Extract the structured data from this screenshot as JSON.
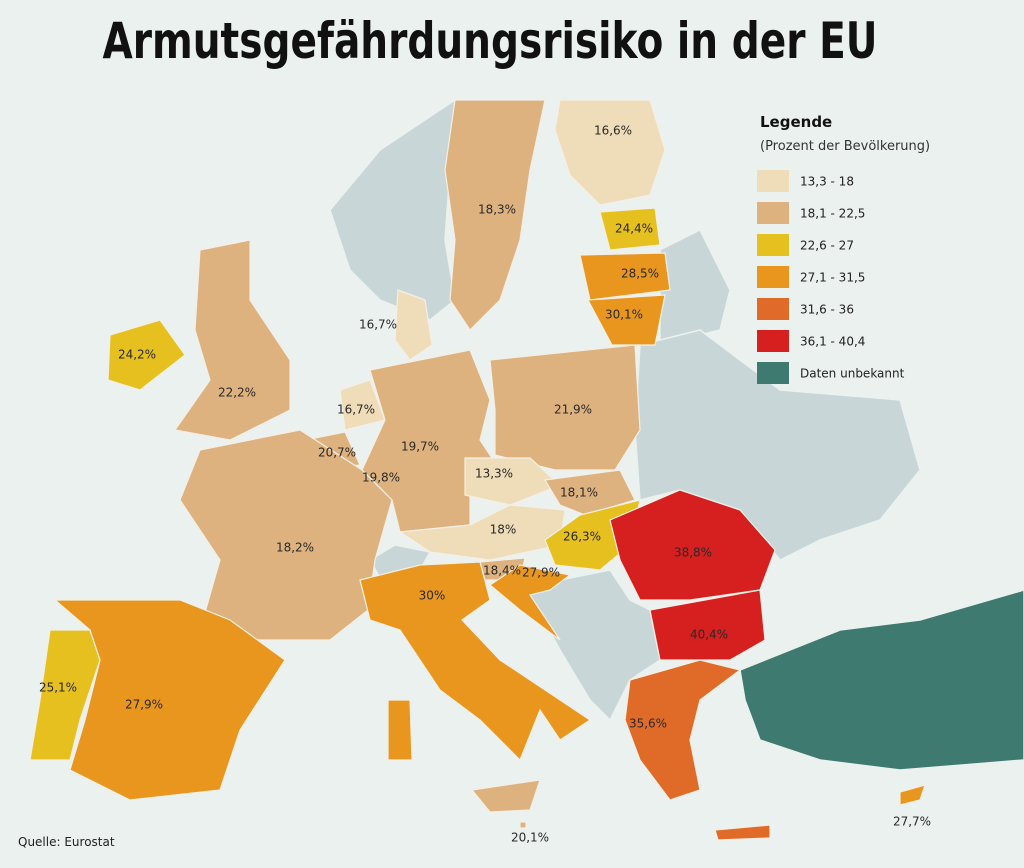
{
  "title": "Armutsgefährdungsrisiko in der EU",
  "legend": {
    "title": "Legende",
    "subtitle": "(Prozent der Bevölkerung)",
    "items": [
      {
        "label": "13,3 - 18",
        "color": "#efdcb8"
      },
      {
        "label": "18,1 - 22,5",
        "color": "#ddb27e"
      },
      {
        "label": "22,6 - 27",
        "color": "#e6c01e"
      },
      {
        "label": "27,1 - 31,5",
        "color": "#e8961e"
      },
      {
        "label": "31,6 - 36",
        "color": "#e06a28"
      },
      {
        "label": "36,1 - 40,4",
        "color": "#d61f1f"
      },
      {
        "label": "Daten unbekannt",
        "color": "#3e7a70"
      }
    ]
  },
  "regions": [
    {
      "label": "16,6%",
      "color": "#efdcb8"
    },
    {
      "label": "18,3%",
      "color": "#ddb27e"
    },
    {
      "label": "24,4%",
      "color": "#e6c01e"
    },
    {
      "label": "28,5%",
      "color": "#e8961e"
    },
    {
      "label": "30,1%",
      "color": "#e8961e"
    },
    {
      "label": "24,2%",
      "color": "#e6c01e"
    },
    {
      "label": "22,2%",
      "color": "#ddb27e"
    },
    {
      "label": "16,7%",
      "color": "#efdcb8"
    },
    {
      "label": "16,7%",
      "color": "#efdcb8"
    },
    {
      "label": "20,7%",
      "color": "#ddb27e"
    },
    {
      "label": "19,8%",
      "color": "#ddb27e"
    },
    {
      "label": "19,7%",
      "color": "#ddb27e"
    },
    {
      "label": "21,9%",
      "color": "#ddb27e"
    },
    {
      "label": "13,3%",
      "color": "#efdcb8"
    },
    {
      "label": "18,1%",
      "color": "#ddb27e"
    },
    {
      "label": "18%",
      "color": "#efdcb8"
    },
    {
      "label": "26,3%",
      "color": "#e6c01e"
    },
    {
      "label": "18,2%",
      "color": "#ddb27e"
    },
    {
      "label": "18,4%",
      "color": "#ddb27e"
    },
    {
      "label": "27,9%",
      "color": "#e8961e"
    },
    {
      "label": "38,8%",
      "color": "#d61f1f"
    },
    {
      "label": "40,4%",
      "color": "#d61f1f"
    },
    {
      "label": "30%",
      "color": "#e8961e"
    },
    {
      "label": "35,6%",
      "color": "#e06a28"
    },
    {
      "label": "25,1%",
      "color": "#e6c01e"
    },
    {
      "label": "27,9%",
      "color": "#e8961e"
    },
    {
      "label": "20,1%",
      "color": "#ddb27e"
    },
    {
      "label": "27,7%",
      "color": "#e8961e"
    }
  ],
  "source": "Quelle: Eurostat"
}
